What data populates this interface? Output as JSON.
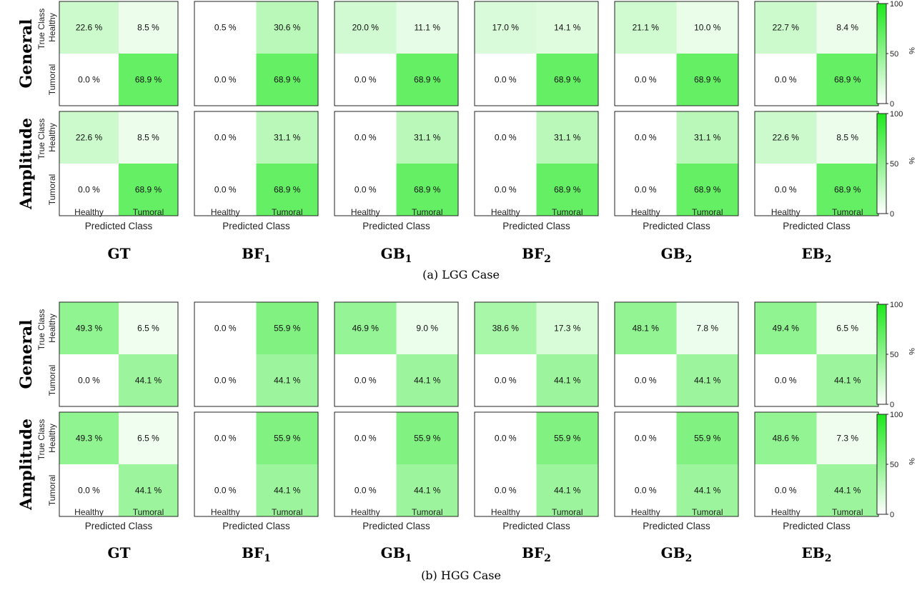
{
  "chart_data": [
    {
      "type": "heatmap",
      "caption": "(a) LGG Case",
      "methods": [
        {
          "base": "GT",
          "sub": ""
        },
        {
          "base": "BF",
          "sub": "1"
        },
        {
          "base": "GB",
          "sub": "1"
        },
        {
          "base": "BF",
          "sub": "2"
        },
        {
          "base": "GB",
          "sub": "2"
        },
        {
          "base": "EB",
          "sub": "2"
        }
      ],
      "rows": [
        {
          "name": "General",
          "matrices": [
            [
              [
                22.6,
                8.5
              ],
              [
                0.0,
                68.9
              ]
            ],
            [
              [
                0.5,
                30.6
              ],
              [
                0.0,
                68.9
              ]
            ],
            [
              [
                20.0,
                11.1
              ],
              [
                0.0,
                68.9
              ]
            ],
            [
              [
                17.0,
                14.1
              ],
              [
                0.0,
                68.9
              ]
            ],
            [
              [
                21.1,
                10.0
              ],
              [
                0.0,
                68.9
              ]
            ],
            [
              [
                22.7,
                8.4
              ],
              [
                0.0,
                68.9
              ]
            ]
          ]
        },
        {
          "name": "Amplitude",
          "matrices": [
            [
              [
                22.6,
                8.5
              ],
              [
                0.0,
                68.9
              ]
            ],
            [
              [
                0.0,
                31.1
              ],
              [
                0.0,
                68.9
              ]
            ],
            [
              [
                0.0,
                31.1
              ],
              [
                0.0,
                68.9
              ]
            ],
            [
              [
                0.0,
                31.1
              ],
              [
                0.0,
                68.9
              ]
            ],
            [
              [
                0.0,
                31.1
              ],
              [
                0.0,
                68.9
              ]
            ],
            [
              [
                22.6,
                8.5
              ],
              [
                0.0,
                68.9
              ]
            ]
          ]
        }
      ]
    },
    {
      "type": "heatmap",
      "caption": "(b) HGG Case",
      "methods": [
        {
          "base": "GT",
          "sub": ""
        },
        {
          "base": "BF",
          "sub": "1"
        },
        {
          "base": "GB",
          "sub": "1"
        },
        {
          "base": "BF",
          "sub": "2"
        },
        {
          "base": "GB",
          "sub": "2"
        },
        {
          "base": "EB",
          "sub": "2"
        }
      ],
      "rows": [
        {
          "name": "General",
          "matrices": [
            [
              [
                49.3,
                6.5
              ],
              [
                0.0,
                44.1
              ]
            ],
            [
              [
                0.0,
                55.9
              ],
              [
                0.0,
                44.1
              ]
            ],
            [
              [
                46.9,
                9.0
              ],
              [
                0.0,
                44.1
              ]
            ],
            [
              [
                38.6,
                17.3
              ],
              [
                0.0,
                44.1
              ]
            ],
            [
              [
                48.1,
                7.8
              ],
              [
                0.0,
                44.1
              ]
            ],
            [
              [
                49.4,
                6.5
              ],
              [
                0.0,
                44.1
              ]
            ]
          ]
        },
        {
          "name": "Amplitude",
          "matrices": [
            [
              [
                49.3,
                6.5
              ],
              [
                0.0,
                44.1
              ]
            ],
            [
              [
                0.0,
                55.9
              ],
              [
                0.0,
                44.1
              ]
            ],
            [
              [
                0.0,
                55.9
              ],
              [
                0.0,
                44.1
              ]
            ],
            [
              [
                0.0,
                55.9
              ],
              [
                0.0,
                44.1
              ]
            ],
            [
              [
                0.0,
                55.9
              ],
              [
                0.0,
                44.1
              ]
            ],
            [
              [
                48.6,
                7.3
              ],
              [
                0.0,
                44.1
              ]
            ]
          ]
        }
      ]
    }
  ],
  "axes": {
    "class_labels": [
      "Healthy",
      "Tumoral"
    ],
    "true_class_label": "True Class",
    "predicted_class_label": "Predicted Class",
    "value_suffix": " %"
  },
  "colorbar": {
    "ticks": [
      0,
      50,
      100
    ],
    "unit": "%",
    "color_low": "#ffffff",
    "color_high": "#1ee81e"
  }
}
